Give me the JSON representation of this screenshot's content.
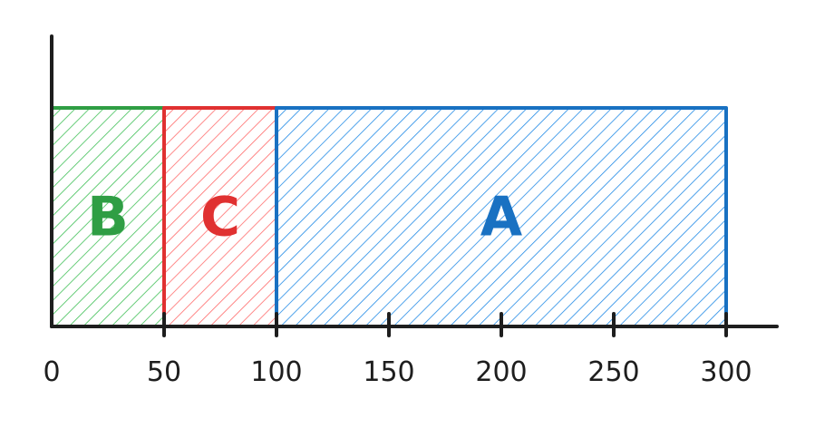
{
  "diagram": {
    "type": "segmented-timeline",
    "x_axis": {
      "range": [
        0,
        320
      ],
      "ticks": [
        0,
        50,
        100,
        150,
        200,
        250,
        300
      ],
      "tick_labels": [
        "0",
        "50",
        "100",
        "150",
        "200",
        "250",
        "300"
      ]
    },
    "segments": [
      {
        "label": "B",
        "start": 0,
        "end": 50,
        "stroke": "#2f9e44",
        "fill": "#40c057"
      },
      {
        "label": "C",
        "start": 50,
        "end": 100,
        "stroke": "#e03131",
        "fill": "#ff6b6b"
      },
      {
        "label": "A",
        "start": 100,
        "end": 300,
        "stroke": "#1971c2",
        "fill": "#228be6"
      }
    ],
    "axis_color": "#1e1e1e"
  }
}
